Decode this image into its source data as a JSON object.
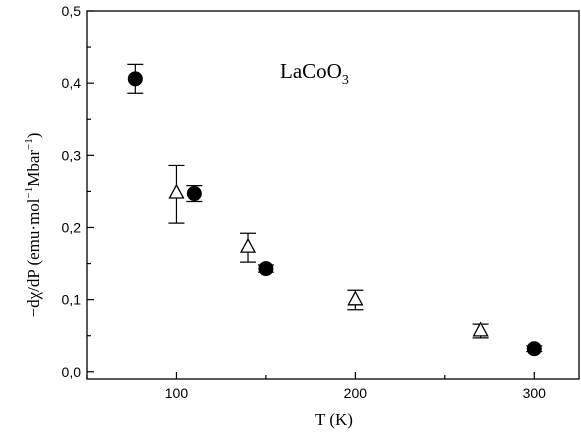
{
  "chart_data": {
    "type": "scatter",
    "title": "",
    "xlabel": "T (K)",
    "ylabel_parts": {
      "prefix": "−dχ/dP (emu·mol",
      "sup1": "−1",
      "middle": "Mbar",
      "sup2": "−1",
      "suffix": ")"
    },
    "annotation": {
      "base": "LaCoO",
      "sub": "3"
    },
    "xlim": [
      50,
      325
    ],
    "ylim": [
      -0.01,
      0.5
    ],
    "x_ticks": [
      100,
      200,
      300
    ],
    "y_ticks": [
      0.0,
      0.1,
      0.2,
      0.3,
      0.4,
      0.5
    ],
    "y_tick_labels": [
      "0,0",
      "0,1",
      "0,2",
      "0,3",
      "0,4",
      "0,5"
    ],
    "grid": false,
    "legend": "none",
    "series": [
      {
        "marker": "filled-circle",
        "color": "#000000",
        "points": [
          {
            "x": 77,
            "y": 0.406,
            "err_low": 0.02,
            "err_high": 0.02
          },
          {
            "x": 110,
            "y": 0.247,
            "err_low": 0.011,
            "err_high": 0.011
          },
          {
            "x": 150,
            "y": 0.143,
            "err_low": 0.005,
            "err_high": 0.005
          },
          {
            "x": 300,
            "y": 0.032,
            "err_low": 0.004,
            "err_high": 0.004
          }
        ]
      },
      {
        "marker": "open-triangle",
        "color": "#000000",
        "points": [
          {
            "x": 100,
            "y": 0.248,
            "err_low": 0.042,
            "err_high": 0.038
          },
          {
            "x": 140,
            "y": 0.173,
            "err_low": 0.021,
            "err_high": 0.019
          },
          {
            "x": 200,
            "y": 0.1,
            "err_low": 0.014,
            "err_high": 0.013
          },
          {
            "x": 270,
            "y": 0.057,
            "err_low": 0.01,
            "err_high": 0.009
          }
        ]
      }
    ]
  }
}
